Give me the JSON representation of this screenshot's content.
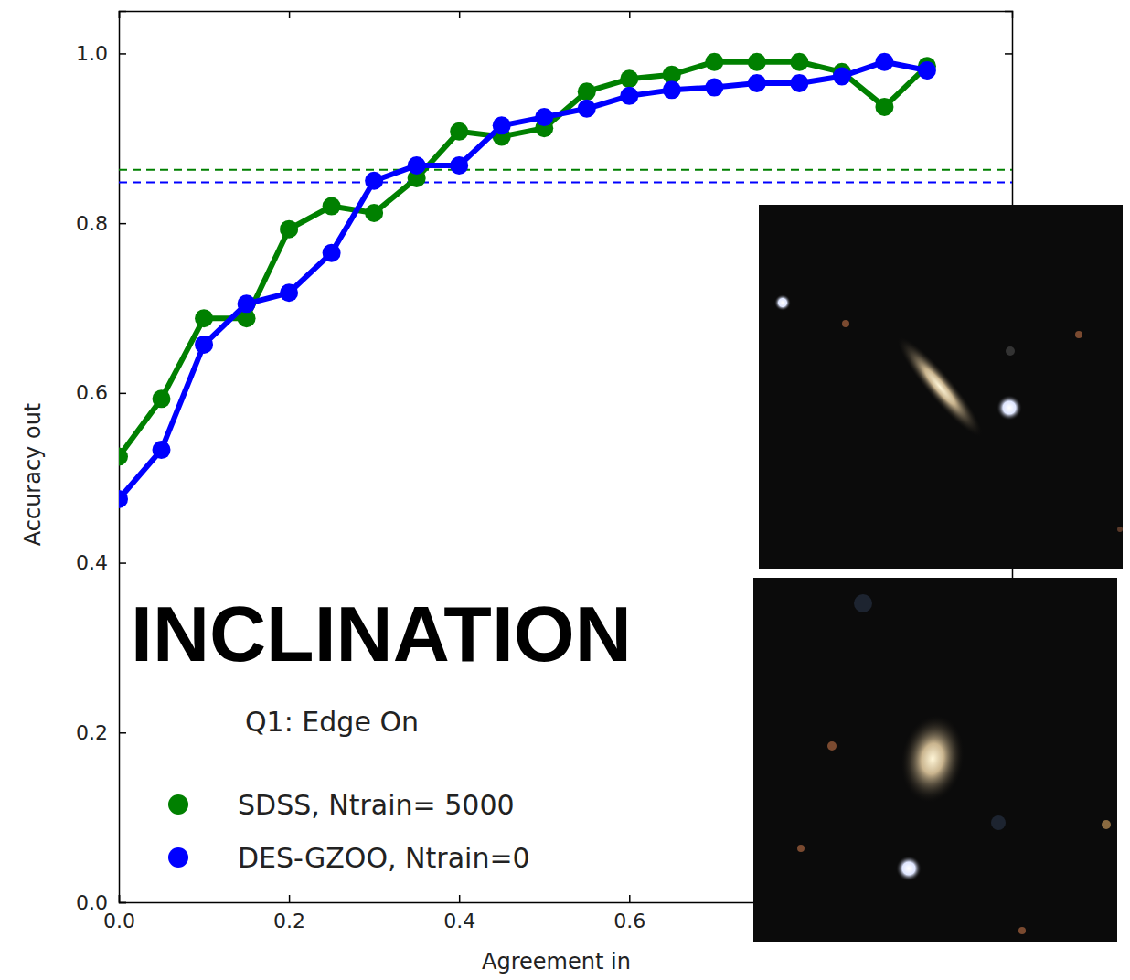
{
  "chart_data": {
    "type": "line",
    "title": "Q1: Edge On",
    "annotation": "INCLINATION",
    "x_label": "Agreement in",
    "y_label": "Accuracy out",
    "x": [
      0.0,
      0.05,
      0.1,
      0.15,
      0.2,
      0.25,
      0.3,
      0.35,
      0.4,
      0.45,
      0.5,
      0.55,
      0.6,
      0.65,
      0.7,
      0.75,
      0.8,
      0.85,
      0.9,
      0.95
    ],
    "series": [
      {
        "name": "SDSS, Ntrain= 5000",
        "color": "#008000",
        "marker": "o",
        "reference": 0.863,
        "values": [
          0.525,
          0.593,
          0.688,
          0.688,
          0.793,
          0.82,
          0.812,
          0.853,
          0.908,
          0.902,
          0.912,
          0.955,
          0.97,
          0.975,
          0.99,
          0.99,
          0.99,
          0.978,
          0.937,
          0.985
        ]
      },
      {
        "name": "DES-GZOO, Ntrain=0",
        "color": "#0000ff",
        "marker": "o",
        "reference": 0.848,
        "values": [
          0.475,
          0.533,
          0.657,
          0.705,
          0.718,
          0.765,
          0.85,
          0.868,
          0.868,
          0.915,
          0.925,
          0.935,
          0.95,
          0.957,
          0.96,
          0.965,
          0.965,
          0.973,
          0.99,
          0.98
        ]
      }
    ],
    "xlim": [
      0,
      1.05
    ],
    "ylim": [
      0,
      1.05
    ],
    "xticks": [
      {
        "value": 0,
        "label": "0.0"
      },
      {
        "value": 0.2,
        "label": "0.2"
      },
      {
        "value": 0.4,
        "label": "0.4"
      },
      {
        "value": 0.6,
        "label": "0.6"
      }
    ],
    "yticks": [
      {
        "value": 0,
        "label": "0.0"
      },
      {
        "value": 0.2,
        "label": "0.2"
      },
      {
        "value": 0.4,
        "label": "0.4"
      },
      {
        "value": 0.6,
        "label": "0.6"
      },
      {
        "value": 0.8,
        "label": "0.8"
      },
      {
        "value": 1.0,
        "label": "1.0"
      }
    ],
    "legend": "lower left",
    "grid": false
  }
}
